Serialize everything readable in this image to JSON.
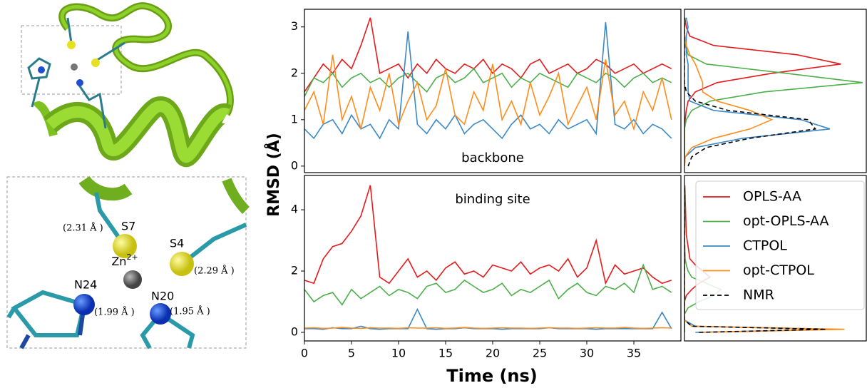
{
  "chart_data": [
    {
      "type": "line",
      "annotation": "backbone",
      "annotation_position": "bottom",
      "ylabel": "RMSD (Å)",
      "xlim": [
        0,
        40
      ],
      "ylim": [
        -0.14,
        3.38
      ],
      "yticks": [
        0,
        1,
        2,
        3
      ],
      "x": [
        0,
        1,
        2,
        3,
        4,
        5,
        6,
        7,
        8,
        9,
        10,
        11,
        12,
        13,
        14,
        15,
        16,
        17,
        18,
        19,
        20,
        21,
        22,
        23,
        24,
        25,
        26,
        27,
        28,
        29,
        30,
        31,
        32,
        33,
        34,
        35,
        36,
        37,
        38,
        39
      ],
      "series": [
        {
          "name": "OPLS-AA",
          "color": "#e41a1c",
          "values": [
            1.6,
            1.9,
            2.2,
            2.0,
            2.3,
            2.1,
            2.6,
            3.2,
            2.0,
            2.1,
            2.2,
            1.9,
            2.2,
            2.0,
            2.3,
            2.1,
            2.0,
            2.2,
            2.1,
            2.3,
            2.0,
            2.2,
            2.1,
            1.9,
            2.2,
            2.3,
            2.0,
            2.1,
            2.2,
            2.0,
            2.1,
            2.3,
            2.2,
            2.0,
            2.1,
            2.2,
            2.0,
            2.1,
            2.2,
            2.1
          ]
        },
        {
          "name": "opt-OPLS-AA",
          "color": "#4daf4a",
          "values": [
            1.5,
            1.9,
            1.8,
            2.0,
            1.7,
            1.9,
            2.0,
            1.8,
            1.9,
            1.7,
            1.9,
            2.0,
            1.8,
            1.6,
            1.9,
            2.0,
            1.8,
            1.9,
            2.1,
            1.8,
            1.9,
            2.0,
            1.7,
            1.9,
            1.8,
            2.0,
            1.9,
            1.8,
            1.7,
            2.0,
            1.9,
            1.8,
            2.0,
            1.9,
            1.7,
            1.9,
            2.0,
            1.8,
            1.9,
            1.8
          ]
        },
        {
          "name": "CTPOL",
          "color": "#3a88c5",
          "values": [
            0.8,
            0.6,
            0.9,
            1.0,
            0.7,
            1.1,
            0.8,
            0.9,
            0.6,
            1.0,
            0.8,
            2.9,
            0.9,
            0.7,
            1.0,
            0.8,
            1.1,
            0.7,
            0.9,
            1.0,
            0.8,
            0.6,
            0.9,
            1.1,
            0.8,
            0.9,
            0.7,
            1.0,
            0.8,
            0.9,
            1.0,
            0.7,
            3.1,
            0.9,
            0.8,
            1.0,
            0.7,
            0.9,
            0.8,
            0.6
          ]
        },
        {
          "name": "opt-CTPOL",
          "color": "#ff8c1a",
          "values": [
            1.2,
            1.6,
            0.9,
            2.4,
            1.0,
            1.5,
            0.8,
            1.7,
            1.2,
            2.0,
            0.9,
            1.4,
            1.8,
            1.0,
            1.3,
            2.1,
            1.1,
            0.9,
            1.6,
            1.2,
            2.2,
            1.0,
            1.4,
            0.9,
            1.8,
            1.1,
            1.5,
            2.0,
            0.9,
            1.3,
            1.7,
            1.0,
            2.3,
            1.1,
            1.4,
            0.8,
            1.6,
            1.2,
            1.9,
            1.0
          ]
        }
      ]
    },
    {
      "type": "line",
      "annotation": "binding site",
      "annotation_position": "top",
      "xlabel": "Time (ns)",
      "xlim": [
        0,
        40
      ],
      "ylim": [
        -0.28,
        5.12
      ],
      "xticks": [
        0,
        5,
        10,
        15,
        20,
        25,
        30,
        35
      ],
      "yticks": [
        0,
        2,
        4
      ],
      "x": [
        0,
        1,
        2,
        3,
        4,
        5,
        6,
        7,
        8,
        9,
        10,
        11,
        12,
        13,
        14,
        15,
        16,
        17,
        18,
        19,
        20,
        21,
        22,
        23,
        24,
        25,
        26,
        27,
        28,
        29,
        30,
        31,
        32,
        33,
        34,
        35,
        36,
        37,
        38,
        39
      ],
      "series": [
        {
          "name": "OPLS-AA",
          "color": "#e41a1c",
          "values": [
            1.7,
            1.6,
            2.4,
            2.8,
            2.9,
            3.3,
            3.8,
            4.8,
            1.8,
            1.6,
            2.0,
            2.4,
            1.8,
            2.0,
            1.7,
            2.1,
            2.3,
            1.9,
            2.0,
            1.8,
            2.2,
            2.1,
            2.0,
            2.3,
            1.9,
            2.1,
            2.2,
            2.0,
            2.4,
            1.8,
            2.1,
            3.0,
            1.6,
            2.2,
            1.9,
            2.0,
            2.1,
            1.8,
            1.6,
            1.7
          ]
        },
        {
          "name": "opt-OPLS-AA",
          "color": "#4daf4a",
          "values": [
            1.4,
            1.0,
            1.2,
            1.3,
            0.9,
            1.4,
            1.1,
            1.3,
            1.5,
            1.2,
            1.4,
            1.3,
            1.1,
            1.5,
            1.6,
            1.3,
            1.4,
            1.7,
            1.5,
            1.3,
            1.4,
            1.6,
            1.2,
            1.4,
            1.3,
            1.5,
            1.7,
            1.1,
            1.4,
            1.6,
            1.3,
            1.2,
            1.5,
            1.4,
            1.6,
            1.3,
            2.2,
            1.4,
            1.5,
            1.3
          ]
        },
        {
          "name": "CTPOL",
          "color": "#3a88c5",
          "values": [
            0.12,
            0.12,
            0.1,
            0.15,
            0.12,
            0.12,
            0.2,
            0.12,
            0.1,
            0.12,
            0.12,
            0.12,
            0.75,
            0.12,
            0.1,
            0.12,
            0.12,
            0.15,
            0.12,
            0.12,
            0.12,
            0.1,
            0.12,
            0.12,
            0.12,
            0.12,
            0.15,
            0.12,
            0.12,
            0.12,
            0.12,
            0.1,
            0.12,
            0.12,
            0.12,
            0.12,
            0.12,
            0.12,
            0.65,
            0.12
          ]
        },
        {
          "name": "opt-CTPOL",
          "color": "#ff8c1a",
          "values": [
            0.14,
            0.15,
            0.13,
            0.14,
            0.16,
            0.14,
            0.13,
            0.15,
            0.14,
            0.14,
            0.13,
            0.15,
            0.14,
            0.14,
            0.15,
            0.13,
            0.14,
            0.16,
            0.14,
            0.13,
            0.14,
            0.15,
            0.14,
            0.14,
            0.13,
            0.14,
            0.15,
            0.14,
            0.14,
            0.13,
            0.14,
            0.15,
            0.14,
            0.14,
            0.16,
            0.14,
            0.13,
            0.14,
            0.15,
            0.14
          ]
        }
      ]
    },
    {
      "type": "density",
      "xlim": [
        0,
        5
      ],
      "ylim": [
        -0.14,
        3.38
      ],
      "y": [
        0,
        0.2,
        0.4,
        0.6,
        0.8,
        1.0,
        1.2,
        1.4,
        1.6,
        1.8,
        2.0,
        2.2,
        2.4,
        2.6,
        2.8,
        3.0,
        3.2
      ],
      "series": [
        {
          "name": "OPLS-AA",
          "color": "#e41a1c",
          "values": [
            0,
            0,
            0,
            0,
            0,
            0.02,
            0.05,
            0.1,
            0.3,
            0.9,
            2.4,
            4.3,
            3.1,
            0.8,
            0.15,
            0.05,
            0.01
          ]
        },
        {
          "name": "opt-OPLS-AA",
          "color": "#4daf4a",
          "values": [
            0,
            0,
            0,
            0,
            0,
            0.05,
            0.2,
            0.7,
            2.2,
            4.9,
            2.8,
            0.6,
            0.1,
            0.02,
            0,
            0,
            0
          ]
        },
        {
          "name": "CTPOL",
          "color": "#3a88c5",
          "values": [
            0,
            0.02,
            0.3,
            1.6,
            4.0,
            3.2,
            0.8,
            0.15,
            0.1,
            0.1,
            0.1,
            0.1,
            0.05,
            0.05,
            0.05,
            0.1,
            0.05
          ]
        },
        {
          "name": "opt-CTPOL",
          "color": "#ff8c1a",
          "values": [
            0,
            0.02,
            0.2,
            0.8,
            1.8,
            2.4,
            1.8,
            0.9,
            0.5,
            0.5,
            0.4,
            0.3,
            0.15,
            0.05,
            0.01,
            0,
            0
          ]
        },
        {
          "name": "NMR",
          "color": "#000000",
          "dash": true,
          "values": [
            0.1,
            0.2,
            0.6,
            1.8,
            3.6,
            3.4,
            1.2,
            0.3,
            0.05,
            0,
            0,
            0,
            0,
            0,
            0,
            0,
            0
          ]
        }
      ]
    },
    {
      "type": "density",
      "xlim": [
        0,
        5
      ],
      "ylim": [
        -0.28,
        5.12
      ],
      "legend": "upper right",
      "y": [
        0,
        0.1,
        0.2,
        0.4,
        0.6,
        0.8,
        1.0,
        1.2,
        1.4,
        1.6,
        1.8,
        2.0,
        2.2,
        2.4,
        2.8,
        3.2,
        4.0,
        4.8
      ],
      "series": [
        {
          "name": "OPLS-AA",
          "color": "#e41a1c",
          "values": [
            0,
            0,
            0,
            0,
            0,
            0,
            0,
            0.05,
            0.2,
            0.4,
            0.7,
            0.5,
            0.3,
            0.15,
            0.1,
            0.05,
            0.03,
            0.01
          ]
        },
        {
          "name": "opt-OPLS-AA",
          "color": "#4daf4a",
          "values": [
            0,
            0,
            0,
            0,
            0,
            0.1,
            0.4,
            0.8,
            1.0,
            0.6,
            0.2,
            0.1,
            0.05,
            0.02,
            0.01,
            0,
            0,
            0
          ]
        },
        {
          "name": "CTPOL",
          "color": "#3a88c5",
          "values": [
            0.3,
            4.2,
            0.3,
            0,
            0,
            0,
            0,
            0,
            0,
            0,
            0,
            0,
            0,
            0,
            0,
            0,
            0,
            0
          ]
        },
        {
          "name": "opt-CTPOL",
          "color": "#ff8c1a",
          "values": [
            0.5,
            4.4,
            0.2,
            0,
            0,
            0,
            0,
            0,
            0,
            0,
            0,
            0,
            0,
            0,
            0,
            0,
            0,
            0
          ]
        },
        {
          "name": "NMR",
          "color": "#000000",
          "dash": true,
          "values": [
            0.4,
            3.9,
            0.2,
            0,
            0,
            0,
            0,
            0,
            0,
            0,
            0,
            0,
            0,
            0,
            0,
            0,
            0,
            0
          ]
        }
      ]
    }
  ],
  "structure": {
    "atoms": [
      {
        "label": "S7",
        "distance": "(2.31 Å )"
      },
      {
        "label": "S4",
        "distance": "(2.29 Å )"
      },
      {
        "label": "Zn",
        "charge": "2+"
      },
      {
        "label": "N24",
        "distance": "(1.99 Å )"
      },
      {
        "label": "N20",
        "distance": "(1.95 Å )"
      }
    ]
  }
}
